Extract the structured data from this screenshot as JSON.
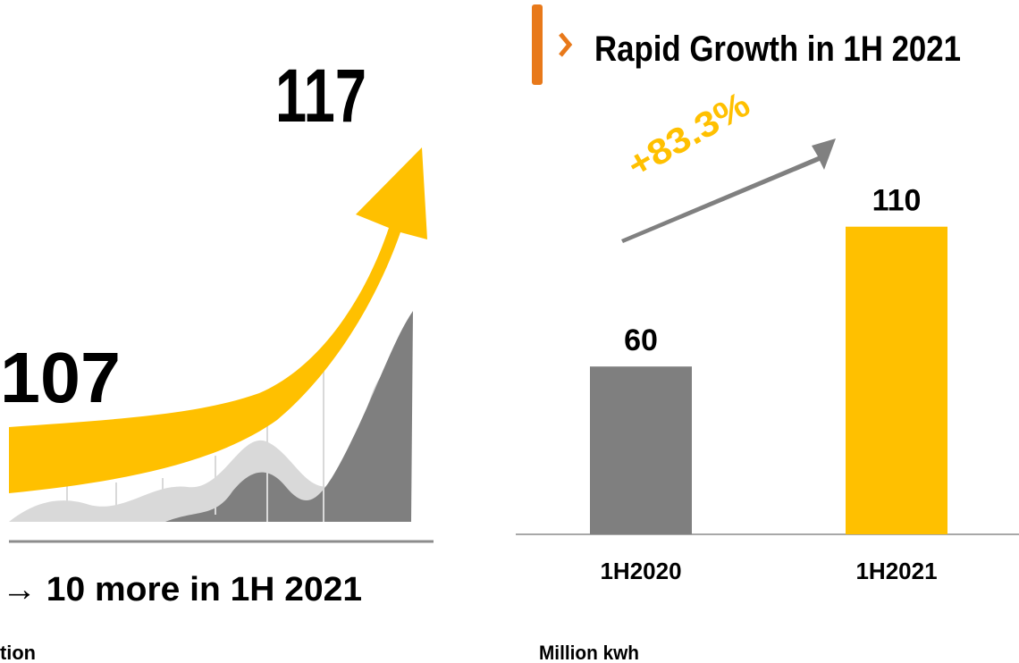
{
  "chart_data": {
    "type": "bar",
    "title": "Rapid Growth in 1H 2021",
    "annotation": "+83.3%",
    "y_axis_label": "Million kwh",
    "categories": [
      "1H2020",
      "1H2021"
    ],
    "values": [
      60,
      110
    ],
    "colors": [
      "#7f7f7f",
      "#ffc000"
    ]
  },
  "left_panel": {
    "start_value": 107,
    "end_value": 117,
    "caption": "→ 10 more in 1H 2021",
    "label": "tion"
  }
}
